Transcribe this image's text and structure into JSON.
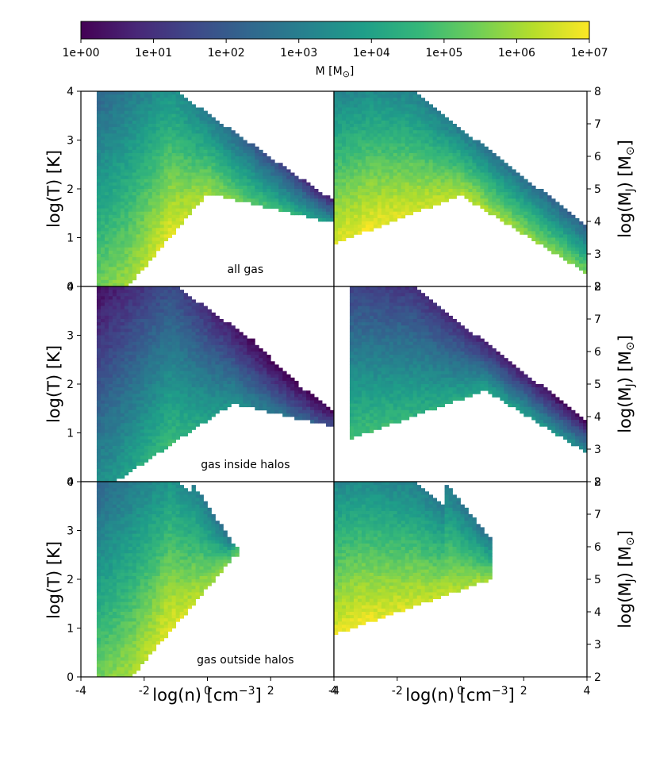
{
  "chart_data": {
    "type": "heatmap",
    "colormap": [
      "#440154",
      "#482878",
      "#3e4989",
      "#31688e",
      "#26828e",
      "#1f9e89",
      "#35b779",
      "#6ece58",
      "#b5de2b",
      "#fde725"
    ],
    "colorbar": {
      "label": "M [M",
      "label_sub": "⊙",
      "label_close": "]",
      "ticks": [
        "1e+00",
        "1e+01",
        "1e+02",
        "1e+03",
        "1e+04",
        "1e+05",
        "1e+06",
        "1e+07"
      ],
      "range_log10": [
        0,
        7
      ]
    },
    "x_axis": {
      "label": "log(n) [cm",
      "label_sup": "−3",
      "label_close": "]",
      "ticks_left": [
        "-4",
        "-2",
        "0",
        "2",
        "4"
      ],
      "ticks_right": [
        "-4",
        "-2",
        "0",
        "2",
        "4"
      ],
      "range": [
        -4,
        4
      ]
    },
    "y_axis_left": {
      "label": "log(T) [K]",
      "ticks": [
        "0",
        "1",
        "2",
        "3",
        "4"
      ],
      "range": [
        0,
        4
      ]
    },
    "y_axis_right": {
      "label": "log(M",
      "label_sub": "J",
      "label_mid": ") [M",
      "label_sub2": "⊙",
      "label_close": "]",
      "ticks": [
        "2",
        "3",
        "4",
        "5",
        "6",
        "7",
        "8"
      ],
      "range": [
        2,
        8
      ]
    },
    "rows": [
      {
        "annotation": "all gas",
        "left": {
          "n_min": -3.5,
          "n_floor": -2.5,
          "n_kink": 0.0,
          "t_kink": 1.9,
          "n_max": 4.0,
          "peak_mass_log": 6.8
        },
        "right": {
          "n_min": -4.0,
          "n_peak": -2.8,
          "n_kink": 0.0,
          "mj_kink": 4.8,
          "n_max": 4.0,
          "peak_mass_log": 6.9
        }
      },
      {
        "annotation": "gas inside halos",
        "left": {
          "n_min": -3.5,
          "n_floor": -2.9,
          "n_kink": 0.8,
          "t_kink": 1.6,
          "n_max": 4.0,
          "peak_mass_log": 4.8
        },
        "right": {
          "n_min": -3.5,
          "n_peak": -3.2,
          "n_kink": 0.8,
          "mj_kink": 4.8,
          "n_max": 4.0,
          "peak_mass_log": 4.9
        }
      },
      {
        "annotation": "gas outside halos",
        "left": {
          "n_min": -3.5,
          "n_floor": -2.4,
          "n_kink": 0.9,
          "t_kink": 2.5,
          "n_max": 1.0,
          "peak_mass_log": 6.8
        },
        "right": {
          "n_min": -4.0,
          "n_peak": -3.2,
          "n_kink": 1.0,
          "mj_kink": 5.0,
          "n_max": 1.0,
          "peak_mass_log": 6.9
        }
      }
    ]
  }
}
